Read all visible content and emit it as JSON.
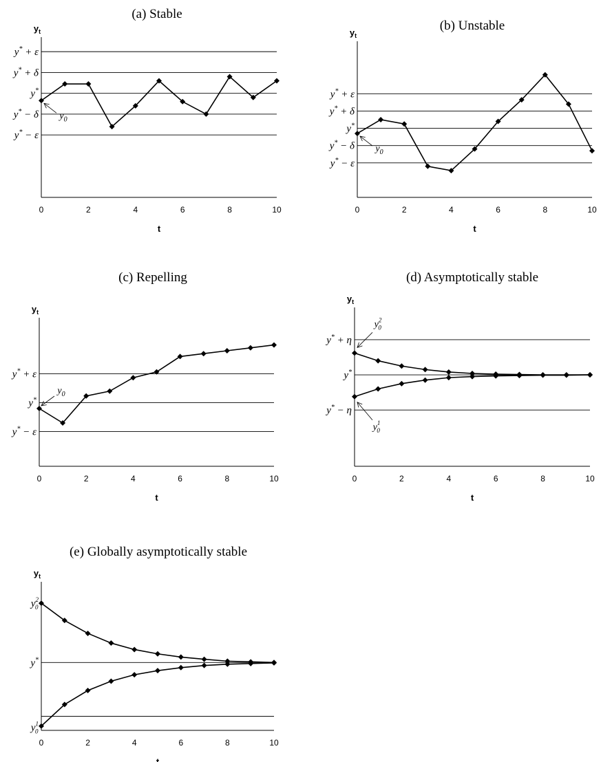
{
  "chart_data": [
    {
      "id": "a",
      "type": "line",
      "title": "(a) Stable",
      "xlabel": "t",
      "ylabel": "y_t",
      "xlim": [
        0,
        10
      ],
      "ylim": [
        -5,
        2.5
      ],
      "x_ticks": [
        "0",
        "2",
        "4",
        "6",
        "8",
        "10"
      ],
      "ref_lines": [
        {
          "y": 2,
          "label": "y* + ε"
        },
        {
          "y": 1,
          "label": "y* + δ"
        },
        {
          "y": 0,
          "label": "y*"
        },
        {
          "y": -1,
          "label": "y* − δ"
        },
        {
          "y": -2,
          "label": "y* − ε"
        }
      ],
      "series": [
        {
          "x": [
            0,
            1,
            2,
            3,
            4,
            5,
            6,
            7,
            8,
            9,
            10
          ],
          "values": [
            -0.35,
            0.45,
            0.45,
            -1.6,
            -0.6,
            0.6,
            -0.4,
            -1.0,
            0.8,
            -0.2,
            0.6
          ]
        }
      ],
      "annotations": [
        {
          "text": "y0",
          "x": 0,
          "y": -0.35
        }
      ]
    },
    {
      "id": "b",
      "type": "line",
      "title": "(b) Unstable",
      "xlabel": "t",
      "ylabel": "y_t",
      "xlim": [
        0,
        10
      ],
      "ylim": [
        -4,
        4.8
      ],
      "x_ticks": [
        "0",
        "2",
        "4",
        "6",
        "8",
        "10"
      ],
      "ref_lines": [
        {
          "y": 2,
          "label": "y* + ε"
        },
        {
          "y": 1,
          "label": "y* + δ"
        },
        {
          "y": 0,
          "label": "y*"
        },
        {
          "y": -1,
          "label": "y* − δ"
        },
        {
          "y": -2,
          "label": "y* − ε"
        }
      ],
      "series": [
        {
          "x": [
            0,
            1,
            2,
            3,
            4,
            5,
            6,
            7,
            8,
            9,
            10
          ],
          "values": [
            -0.3,
            0.5,
            0.25,
            -2.2,
            -2.45,
            -1.2,
            0.4,
            1.65,
            3.1,
            1.4,
            -1.3
          ]
        }
      ],
      "annotations": [
        {
          "text": "y0",
          "x": 0,
          "y": -0.3
        }
      ]
    },
    {
      "id": "c",
      "type": "line",
      "title": "(c) Repelling",
      "xlabel": "t",
      "ylabel": "y_t",
      "xlim": [
        0,
        10
      ],
      "ylim": [
        -3.3,
        4.2
      ],
      "x_ticks": [
        "0",
        "2",
        "4",
        "6",
        "8",
        "10"
      ],
      "ref_lines": [
        {
          "y": 1.5,
          "label": "y* + ε"
        },
        {
          "y": 0,
          "label": "y*"
        },
        {
          "y": -1.5,
          "label": "y* − ε"
        }
      ],
      "series": [
        {
          "x": [
            0,
            1,
            2,
            3,
            4,
            5,
            6,
            7,
            8,
            9,
            10
          ],
          "values": [
            -0.3,
            -1.05,
            0.35,
            0.6,
            1.3,
            1.6,
            2.4,
            2.55,
            2.7,
            2.85,
            3.0
          ]
        }
      ],
      "annotations": [
        {
          "text": "y0",
          "x": 0,
          "y": -0.3
        }
      ]
    },
    {
      "id": "d",
      "type": "line",
      "title": "(d) Asymptotically stable",
      "xlabel": "t",
      "ylabel": "y_t",
      "xlim": [
        0,
        10
      ],
      "ylim": [
        -2.6,
        1.8
      ],
      "x_ticks": [
        "0",
        "2",
        "4",
        "6",
        "8",
        "10"
      ],
      "ref_lines": [
        {
          "y": 1,
          "label": "y* + η"
        },
        {
          "y": 0,
          "label": "y*"
        },
        {
          "y": -1,
          "label": "y* − η"
        }
      ],
      "series": [
        {
          "x": [
            0,
            1,
            2,
            3,
            4,
            5,
            6,
            7,
            8,
            9,
            10
          ],
          "values": [
            0.62,
            0.4,
            0.25,
            0.15,
            0.08,
            0.04,
            0.02,
            0.01,
            0.0,
            0.0,
            0.0
          ]
        },
        {
          "x": [
            0,
            1,
            2,
            3,
            4,
            5,
            6,
            7,
            8,
            9,
            10
          ],
          "values": [
            -0.62,
            -0.4,
            -0.25,
            -0.15,
            -0.08,
            -0.05,
            -0.03,
            -0.02,
            -0.01,
            -0.01,
            0.0
          ]
        }
      ],
      "annotations": [
        {
          "text": "y0^2",
          "x": 0,
          "y": 0.62
        },
        {
          "text": "y0^1",
          "x": 0,
          "y": -0.62
        }
      ]
    },
    {
      "id": "e",
      "type": "line",
      "title": "(e) Globally asymptotically stable",
      "xlabel": "t",
      "ylabel": "y_t",
      "xlim": [
        0,
        10
      ],
      "ylim": [
        -3.15,
        3.55
      ],
      "x_ticks": [
        "0",
        "2",
        "4",
        "6",
        "8",
        "10"
      ],
      "y_tick_labels": [
        {
          "y": 2.75,
          "label": "y0^2"
        },
        {
          "y": 0,
          "label": "y*"
        },
        {
          "y": -3.0,
          "label": "y0^1"
        }
      ],
      "ref_lines": [
        {
          "y": 0,
          "label": ""
        },
        {
          "y": -2.5,
          "label": ""
        }
      ],
      "series": [
        {
          "x": [
            0,
            1,
            2,
            3,
            4,
            5,
            6,
            7,
            8,
            9,
            10
          ],
          "values": [
            2.75,
            1.95,
            1.35,
            0.9,
            0.6,
            0.4,
            0.25,
            0.15,
            0.06,
            0.03,
            0.0
          ]
        },
        {
          "x": [
            0,
            1,
            2,
            3,
            4,
            5,
            6,
            7,
            8,
            9,
            10
          ],
          "values": [
            -2.95,
            -1.95,
            -1.3,
            -0.87,
            -0.57,
            -0.38,
            -0.24,
            -0.14,
            -0.08,
            -0.05,
            -0.02
          ]
        }
      ],
      "annotations": []
    }
  ]
}
